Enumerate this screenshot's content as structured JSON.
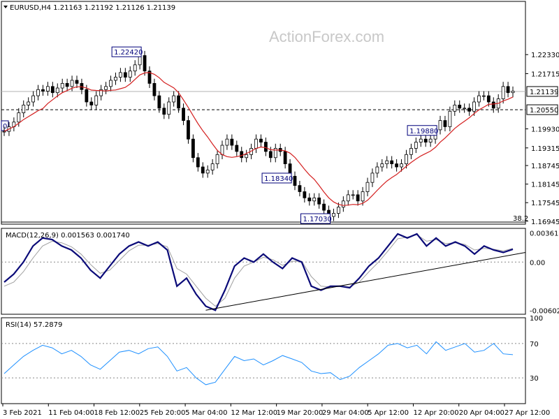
{
  "chart_data": [
    {
      "type": "candlestick",
      "header": "EURUSD,H4  1.21163 1.21192 1.21126 1.21139",
      "watermark": "ActionForex.com",
      "ylim": [
        1.1685,
        1.2405
      ],
      "y_ticks": [
        "1.22330",
        "1.21715",
        "1.21139",
        "1.20550",
        "1.19930",
        "1.19315",
        "1.18745",
        "1.18145",
        "1.17545",
        "1.16945"
      ],
      "x_ticks": [
        "3 Feb 2021",
        "11 Feb 04:00",
        "18 Feb 12:00",
        "25 Feb 20:00",
        "5 Mar 04:00",
        "12 Mar 12:00",
        "19 Mar 20:00",
        "29 Mar 04:00",
        "5 Apr 12:00",
        "12 Apr 20:00",
        "20 Apr 04:00",
        "27 Apr 12:00"
      ],
      "current_price": 1.21139,
      "current_price_label": "1.21139",
      "level_line": 1.2055,
      "level_label": "1.20550",
      "fib_label": "38.2",
      "left_edge_label": "0",
      "annotations": [
        {
          "label": "1.22420",
          "value": 1.2242
        },
        {
          "label": "1.19880",
          "value": 1.1988
        },
        {
          "label": "1.18340",
          "value": 1.1834
        },
        {
          "label": "1.17030",
          "value": 1.1703
        }
      ],
      "close": [
        1.1985,
        1.2,
        1.2015,
        1.2045,
        1.207,
        1.208,
        1.21,
        1.212,
        1.2115,
        1.213,
        1.211,
        1.2125,
        1.214,
        1.213,
        1.215,
        1.214,
        1.212,
        1.208,
        1.207,
        1.21,
        1.212,
        1.213,
        1.215,
        1.216,
        1.2175,
        1.216,
        1.218,
        1.22,
        1.223,
        1.218,
        1.214,
        1.21,
        1.206,
        1.204,
        1.208,
        1.21,
        1.206,
        1.202,
        1.196,
        1.19,
        1.187,
        1.185,
        1.186,
        1.188,
        1.191,
        1.194,
        1.196,
        1.194,
        1.192,
        1.19,
        1.191,
        1.193,
        1.196,
        1.195,
        1.192,
        1.19,
        1.193,
        1.192,
        1.188,
        1.184,
        1.181,
        1.179,
        1.177,
        1.176,
        1.177,
        1.175,
        1.173,
        1.171,
        1.172,
        1.174,
        1.176,
        1.178,
        1.178,
        1.176,
        1.179,
        1.182,
        1.185,
        1.187,
        1.188,
        1.189,
        1.188,
        1.187,
        1.188,
        1.191,
        1.193,
        1.195,
        1.196,
        1.195,
        1.196,
        1.199,
        1.202,
        1.2,
        1.205,
        1.207,
        1.206,
        1.206,
        1.205,
        1.208,
        1.21,
        1.21,
        1.208,
        1.206,
        1.209,
        1.213,
        1.211,
        1.2115
      ],
      "ma_period": 50
    },
    {
      "type": "line",
      "header": "MACD(12,26,9) 0.001563 0.001740",
      "ylim": [
        -0.0065,
        0.0042
      ],
      "y_ticks": [
        "0.003615",
        "0.00",
        "-0.006026"
      ],
      "series": [
        {
          "name": "MACD",
          "color": "#0a0a78",
          "values": [
            -0.0025,
            -0.0015,
            0.0,
            0.002,
            0.003,
            0.0028,
            0.002,
            0.0015,
            0.0005,
            -0.001,
            -0.002,
            -0.0005,
            0.001,
            0.002,
            0.0025,
            0.002,
            0.0025,
            0.0015,
            -0.003,
            -0.002,
            -0.004,
            -0.0055,
            -0.006,
            -0.0035,
            -0.0005,
            0.0005,
            0.0,
            0.001,
            0.0,
            -0.0008,
            0.0005,
            0.0,
            -0.003,
            -0.0035,
            -0.003,
            -0.003,
            -0.0032,
            -0.002,
            -0.0005,
            0.0005,
            0.002,
            0.0035,
            0.003,
            0.0035,
            0.002,
            0.003,
            0.002,
            0.0025,
            0.002,
            0.001,
            0.002,
            0.0015,
            0.0012,
            0.0016
          ]
        },
        {
          "name": "Signal",
          "color": "#a0a0a0",
          "values": [
            -0.003,
            -0.0025,
            -0.0012,
            0.0005,
            0.002,
            0.0026,
            0.0024,
            0.0019,
            0.001,
            -0.0003,
            -0.0014,
            -0.001,
            0.0002,
            0.0014,
            0.0021,
            0.0021,
            0.0023,
            0.0019,
            -0.0008,
            -0.0015,
            -0.003,
            -0.0045,
            -0.0055,
            -0.0045,
            -0.002,
            -0.0005,
            0.0,
            0.0006,
            0.0003,
            -0.0004,
            0.0001,
            0.0001,
            -0.0018,
            -0.003,
            -0.0031,
            -0.003,
            -0.0031,
            -0.0025,
            -0.0012,
            0.0,
            0.0014,
            0.0029,
            0.0031,
            0.0034,
            0.0026,
            0.0028,
            0.0023,
            0.0024,
            0.0022,
            0.0015,
            0.0017,
            0.0016,
            0.0014,
            0.0017
          ]
        }
      ],
      "trendline": [
        [
          21,
          -0.006
        ],
        [
          53,
          0.0012
        ]
      ]
    },
    {
      "type": "line",
      "header": "RSI(14) 57.2879",
      "ylim": [
        0,
        100
      ],
      "y_ticks": [
        "100",
        "70",
        "30",
        "0"
      ],
      "levels": [
        70,
        30
      ],
      "series": [
        {
          "name": "RSI",
          "color": "#1e90ff",
          "values": [
            35,
            45,
            55,
            62,
            68,
            65,
            58,
            62,
            55,
            45,
            40,
            50,
            60,
            62,
            58,
            64,
            66,
            55,
            38,
            42,
            30,
            22,
            25,
            40,
            55,
            50,
            52,
            45,
            50,
            56,
            52,
            48,
            38,
            35,
            36,
            28,
            32,
            42,
            50,
            58,
            68,
            70,
            65,
            68,
            58,
            72,
            62,
            66,
            70,
            60,
            62,
            70,
            58,
            57
          ]
        }
      ]
    }
  ]
}
